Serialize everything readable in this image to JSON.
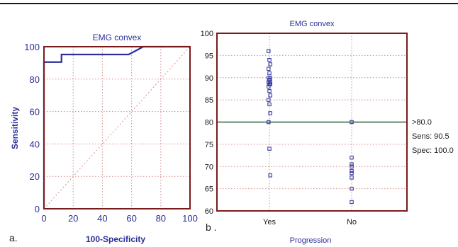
{
  "colors": {
    "roc_line": "#2b2e9a",
    "frame": "#7a1a1a",
    "grid": "#d88a8a",
    "diagonal": "#e2a0a0",
    "threshold_line": "#2c5d3a",
    "markers": "#2b2e9a",
    "text_axis": "#2b2e9a",
    "text_black": "#1a1a1a"
  },
  "panel_a": {
    "label": "a."
  },
  "panel_b": {
    "label": "b ."
  },
  "chart_data": [
    {
      "type": "line",
      "title": "EMG convex",
      "xlabel": "100-Specificity",
      "ylabel": "Sensitivity",
      "xlim": [
        0,
        100
      ],
      "ylim": [
        0,
        100
      ],
      "xticks": [
        0,
        20,
        40,
        60,
        80,
        100
      ],
      "yticks": [
        0,
        20,
        40,
        60,
        80,
        100
      ],
      "grid": true,
      "series": [
        {
          "style": "solid",
          "x": [
            0,
            0,
            12,
            12,
            58,
            68,
            68,
            100
          ],
          "y": [
            0,
            90.5,
            90.5,
            95.2,
            95.2,
            100,
            100,
            100
          ]
        },
        {
          "style": "dotted",
          "x": [
            0,
            100
          ],
          "y": [
            0,
            100
          ]
        }
      ]
    },
    {
      "type": "scatter",
      "title": "EMG convex",
      "xlabel": "Progression",
      "ylabel": "",
      "categories": [
        "Yes",
        "No"
      ],
      "ylim": [
        60,
        100
      ],
      "yticks": [
        60,
        65,
        70,
        75,
        80,
        85,
        90,
        95,
        100
      ],
      "grid": true,
      "threshold": 80,
      "annotations": [
        ">80.0",
        "Sens: 90.5",
        "Spec: 100.0"
      ],
      "series": [
        {
          "category": "Yes",
          "values": [
            96,
            94,
            93,
            92,
            91,
            90,
            90,
            89.5,
            89,
            89,
            88.5,
            88.5,
            88,
            87,
            86,
            85,
            84,
            82,
            80,
            74,
            68
          ]
        },
        {
          "category": "No",
          "values": [
            80,
            72,
            70.5,
            70,
            69,
            68.5,
            67.5,
            65,
            62
          ]
        }
      ]
    }
  ]
}
